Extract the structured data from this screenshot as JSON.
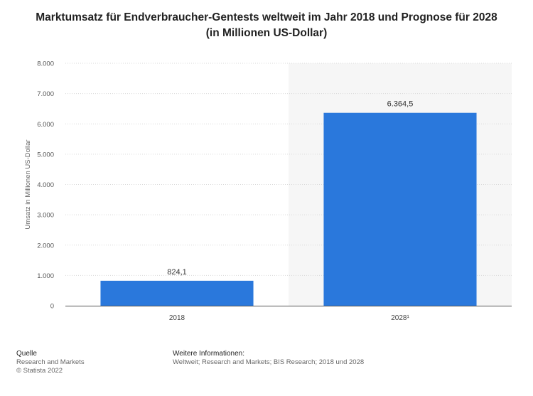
{
  "title": "Marktumsatz für Endverbraucher-Gentests weltweit im Jahr 2018 und Prognose für 2028 (in Millionen US-Dollar)",
  "colors": {
    "bar": "#2a78dc",
    "forecast_band": "#f6f6f6",
    "grid": "#d9d9d9",
    "axis": "#555555"
  },
  "chart_data": {
    "type": "bar",
    "categories": [
      "2018",
      "2028¹"
    ],
    "values": [
      824.1,
      6364.5
    ],
    "value_labels": [
      "824,1",
      "6.364,5"
    ],
    "ylabel": "Umsatz in Millionen US-Dollar",
    "xlabel": "",
    "ylim": [
      0,
      8000
    ],
    "yticks": [
      0,
      1000,
      2000,
      3000,
      4000,
      5000,
      6000,
      7000,
      8000
    ],
    "ytick_labels": [
      "0",
      "1.000",
      "2.000",
      "3.000",
      "4.000",
      "5.000",
      "6.000",
      "7.000",
      "8.000"
    ],
    "grid": true,
    "forecast_category_index": 1
  },
  "footer": {
    "source_heading": "Quelle",
    "source_lines": [
      "Research and Markets",
      "© Statista 2022"
    ],
    "info_heading": "Weitere Informationen:",
    "info_text": "Weltweit; Research and Markets; BIS Research; 2018 und 2028"
  }
}
